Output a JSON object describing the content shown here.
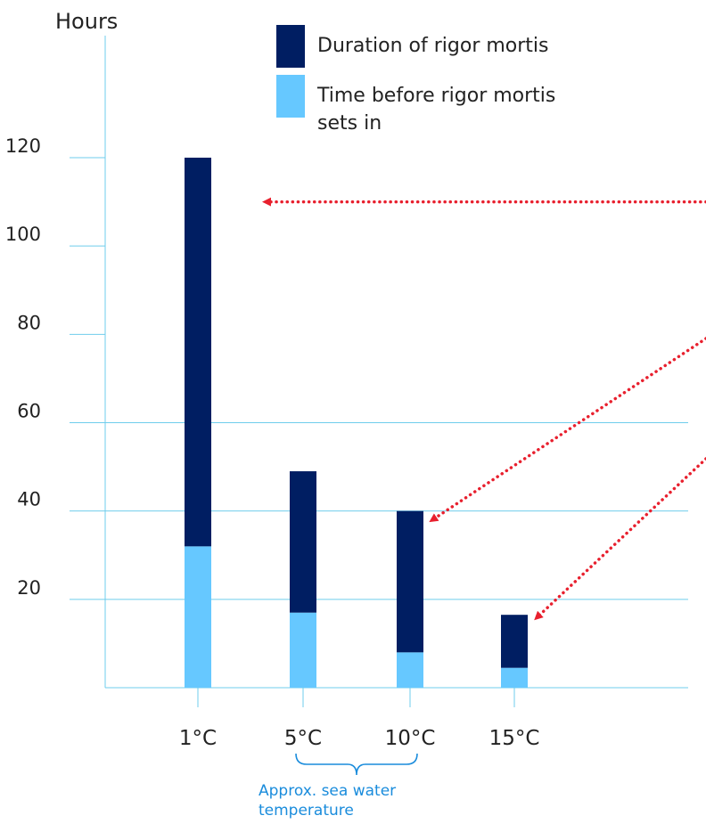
{
  "chart_data": {
    "type": "bar",
    "stacked": true,
    "ylabel": "Hours",
    "ylim": [
      0,
      120
    ],
    "yticks": [
      20,
      40,
      60,
      80,
      100,
      120
    ],
    "categories": [
      "1°C",
      "5°C",
      "10°C",
      "15°C"
    ],
    "series": [
      {
        "name": "Time before rigor mortis sets in",
        "values": [
          32,
          17,
          8,
          4.5
        ],
        "color": "#66c8ff"
      },
      {
        "name": "Duration of rigor mortis",
        "values": [
          88,
          32,
          32,
          12
        ],
        "color": "#001e62"
      }
    ],
    "legend": {
      "position": "top",
      "items": [
        {
          "lines": [
            "Duration of rigor mortis"
          ],
          "color": "#001e62"
        },
        {
          "lines": [
            "Time before rigor mortis",
            "sets in"
          ],
          "color": "#66c8ff"
        }
      ]
    },
    "annotation": {
      "lines": [
        "Approx. sea water",
        "temperature"
      ],
      "spans": [
        "5°C",
        "10°C"
      ],
      "color": "#1a8cdc"
    },
    "arrows": {
      "color": "#e8202e",
      "style": "dotted",
      "targets": [
        {
          "category": "1°C",
          "value": 110
        },
        {
          "category": "10°C",
          "value": 40
        },
        {
          "category": "15°C",
          "value": 18
        }
      ]
    },
    "grid": {
      "lines_at": [
        20,
        40,
        60
      ],
      "color": "#6fcdec"
    },
    "axis_color": "#6fcdec"
  }
}
